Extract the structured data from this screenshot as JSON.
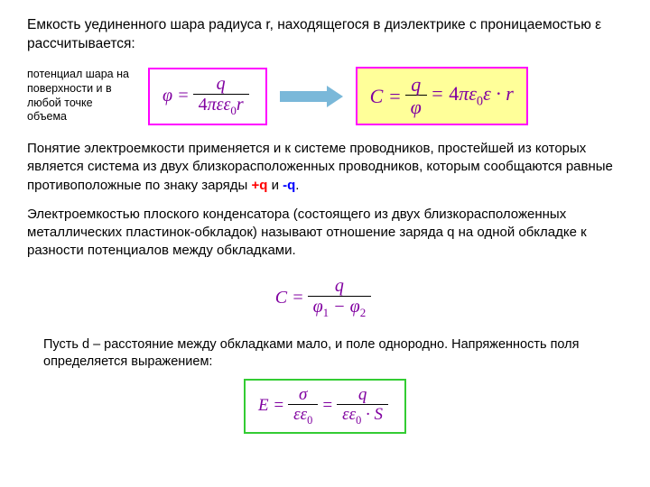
{
  "intro": "Емкость уединенного шара радиуса r, находящегося в диэлектрике с проницаемостью ε рассчитывается:",
  "note": "потенциал шара на поверхности и в любой точке объема",
  "formula_phi": {
    "lhs": "φ =",
    "num": "q",
    "den": "4πεε₀r"
  },
  "formula_c": {
    "lhs": "C =",
    "num": "q",
    "den": "φ",
    "rhs": " = 4πε₀ε · r"
  },
  "para1_a": "Понятие электроемкости применяется и к системе проводников, простейшей из которых является система из двух близкорасположенных проводников, которым сообщаются равные противоположные по знаку заряды ",
  "plus_q": "+q",
  "and": " и ",
  "minus_q": "-q",
  "dot": ".",
  "para2": "Электроемкостью плоского конденсатора (состоящего из двух близкорасположенных металлических пластинок-обкладок) называют отношение заряда q на одной обкладке к разности потенциалов между обкладками.",
  "formula_c2": {
    "lhs": "C =",
    "num": "q",
    "den": "φ₁ − φ₂"
  },
  "para3": "Пусть d – расстояние между обкладками мало, и поле однородно. Напряженность поля определяется выражением:",
  "formula_e": {
    "lhs": "E =",
    "num1": "σ",
    "den1": "εε₀",
    "eq": " = ",
    "num2": "q",
    "den2": "εε₀ · S"
  },
  "colors": {
    "magenta_border": "#ff00ff",
    "yellow_fill": "#ffff99",
    "green_border": "#33cc33",
    "arrow": "#7ab8d9",
    "formula_text": "#8000a0",
    "plus_q": "#ff0000",
    "minus_q": "#0000ff"
  },
  "fonts": {
    "body": "Arial",
    "formula": "Times New Roman",
    "body_size_pt": 12,
    "note_size_pt": 10,
    "formula_size_pt": 16
  }
}
